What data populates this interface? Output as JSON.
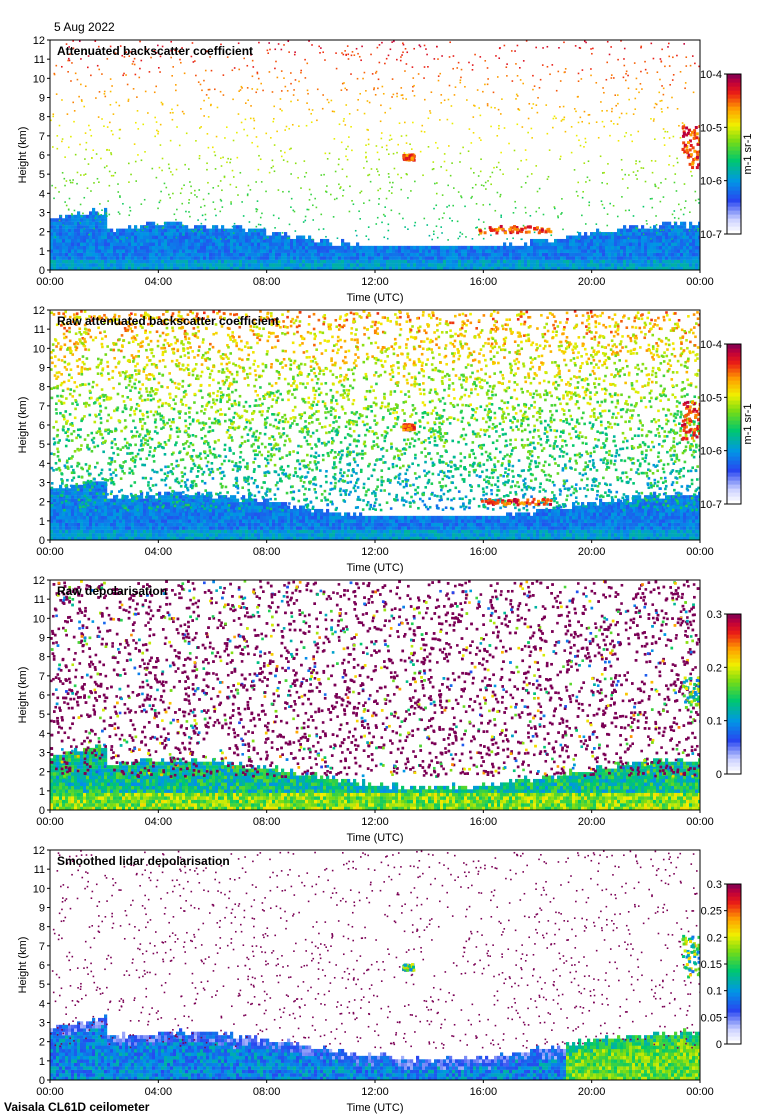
{
  "date_label": "5 Aug 2022",
  "footer": "Vaisala CL61D ceilometer",
  "chart_data": [
    {
      "type": "heatmap",
      "title": "Attenuated backscatter coefficient",
      "xlabel": "Time (UTC)",
      "ylabel": "Height (km)",
      "x_ticks": [
        "00:00",
        "04:00",
        "08:00",
        "12:00",
        "16:00",
        "20:00",
        "00:00"
      ],
      "y_ticks": [
        0,
        1,
        2,
        3,
        4,
        5,
        6,
        7,
        8,
        9,
        10,
        11,
        12
      ],
      "ylim": [
        0,
        12
      ],
      "xlim_hours": [
        0,
        24
      ],
      "colorbar": {
        "scale": "log",
        "ticks": [
          "10-7",
          "10-6",
          "10-5",
          "10-4"
        ],
        "tick_values": [
          -7,
          -6,
          -5,
          -4
        ],
        "range": [
          -7,
          -4
        ],
        "unit": "m-1 sr-1"
      },
      "boundary_layer_top_km": 1.6,
      "clouds": [
        {
          "t0": 13.0,
          "t1": 13.4,
          "h0": 5.8,
          "h1": 6.1
        },
        {
          "t0": 23.3,
          "t1": 24.0,
          "h0": 5.3,
          "h1": 7.6
        },
        {
          "t0": 15.8,
          "t1": 18.5,
          "h0": 2.0,
          "h1": 2.35
        }
      ]
    },
    {
      "type": "heatmap",
      "title": "Raw attenuated backscatter coefficient",
      "xlabel": "Time (UTC)",
      "ylabel": "Height (km)",
      "x_ticks": [
        "00:00",
        "04:00",
        "08:00",
        "12:00",
        "16:00",
        "20:00",
        "00:00"
      ],
      "y_ticks": [
        0,
        1,
        2,
        3,
        4,
        5,
        6,
        7,
        8,
        9,
        10,
        11,
        12
      ],
      "ylim": [
        0,
        12
      ],
      "xlim_hours": [
        0,
        24
      ],
      "colorbar": {
        "scale": "log",
        "ticks": [
          "10-7",
          "10-6",
          "10-5",
          "10-4"
        ],
        "tick_values": [
          -7,
          -6,
          -5,
          -4
        ],
        "range": [
          -7,
          -4
        ],
        "unit": "m-1 sr-1"
      },
      "boundary_layer_top_km": 1.6,
      "clouds": [
        {
          "t0": 13.0,
          "t1": 13.4,
          "h0": 5.8,
          "h1": 6.1
        },
        {
          "t0": 23.3,
          "t1": 24.0,
          "h0": 5.3,
          "h1": 7.3
        },
        {
          "t0": 15.8,
          "t1": 18.5,
          "h0": 1.9,
          "h1": 2.2
        }
      ]
    },
    {
      "type": "heatmap",
      "title": "Raw depolarisation",
      "xlabel": "Time (UTC)",
      "ylabel": "Height (km)",
      "x_ticks": [
        "00:00",
        "04:00",
        "08:00",
        "12:00",
        "16:00",
        "20:00",
        "00:00"
      ],
      "y_ticks": [
        0,
        1,
        2,
        3,
        4,
        5,
        6,
        7,
        8,
        9,
        10,
        11,
        12
      ],
      "ylim": [
        0,
        12
      ],
      "xlim_hours": [
        0,
        24
      ],
      "colorbar": {
        "scale": "linear",
        "ticks": [
          "0",
          "0.1",
          "0.2",
          "0.3"
        ],
        "tick_values": [
          0,
          0.1,
          0.2,
          0.3
        ],
        "range": [
          0,
          0.3
        ],
        "unit": ""
      },
      "boundary_layer_top_km": 1.8,
      "clouds": [
        {
          "t0": 23.3,
          "t1": 24.0,
          "h0": 5.4,
          "h1": 7.0
        }
      ]
    },
    {
      "type": "heatmap",
      "title": "Smoothed lidar depolarisation",
      "xlabel": "Time (UTC)",
      "ylabel": "Height (km)",
      "x_ticks": [
        "00:00",
        "04:00",
        "08:00",
        "12:00",
        "16:00",
        "20:00",
        "00:00"
      ],
      "y_ticks": [
        0,
        1,
        2,
        3,
        4,
        5,
        6,
        7,
        8,
        9,
        10,
        11,
        12
      ],
      "ylim": [
        0,
        12
      ],
      "xlim_hours": [
        0,
        24
      ],
      "colorbar": {
        "scale": "linear",
        "ticks": [
          "0",
          "0.05",
          "0.1",
          "0.15",
          "0.2",
          "0.25",
          "0.3"
        ],
        "tick_values": [
          0,
          0.05,
          0.1,
          0.15,
          0.2,
          0.25,
          0.3
        ],
        "range": [
          0,
          0.3
        ],
        "unit": ""
      },
      "boundary_layer_top_km": 1.7,
      "clouds": [
        {
          "t0": 13.0,
          "t1": 13.4,
          "h0": 5.8,
          "h1": 6.1
        },
        {
          "t0": 23.3,
          "t1": 24.0,
          "h0": 5.4,
          "h1": 7.6
        }
      ]
    }
  ]
}
